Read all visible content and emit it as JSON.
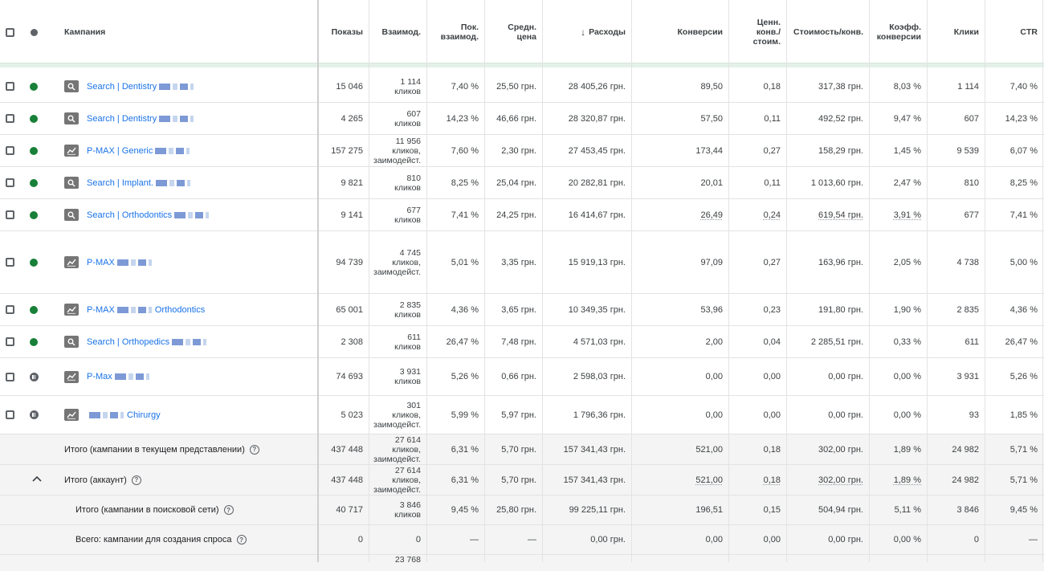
{
  "header": {
    "campaign": "Кампания",
    "impressions": "Показы",
    "interactions": "Взаимод.",
    "interaction_rate": "Пок. взаимод.",
    "avg_cost": "Средн. цена",
    "sort_arrow": "↓",
    "cost": "Расходы",
    "conversions": "Конверсии",
    "conv_value_cost": "Ценн. конв./ стоим.",
    "cost_per_conv": "Стоимость/конв.",
    "conv_rate": "Коэфф. конверсии",
    "clicks": "Клики",
    "ctr": "CTR"
  },
  "rows": [
    {
      "status": "enabled",
      "type": "search",
      "name": "Search | Dentistry",
      "impr": "15 046",
      "inter": "1 114",
      "inter_unit": "кликов",
      "inter_unit2": "",
      "rate": "7,40 %",
      "avg": "25,50 грн.",
      "cost": "28 405,26 грн.",
      "conv": "89,50",
      "cvc": "0,18",
      "cpc": "317,38 грн.",
      "cr": "8,03 %",
      "clicks": "1 114",
      "ctr": "7,40 %"
    },
    {
      "status": "enabled",
      "type": "search",
      "name": "Search | Dentistry",
      "impr": "4 265",
      "inter": "607",
      "inter_unit": "кликов",
      "inter_unit2": "",
      "rate": "14,23 %",
      "avg": "46,66 грн.",
      "cost": "28 320,87 грн.",
      "conv": "57,50",
      "cvc": "0,11",
      "cpc": "492,52 грн.",
      "cr": "9,47 %",
      "clicks": "607",
      "ctr": "14,23 %"
    },
    {
      "status": "enabled",
      "type": "pmax",
      "name": "P-MAX | Generic",
      "impr": "157 275",
      "inter": "11 956",
      "inter_unit": "кликов,",
      "inter_unit2": "заимодейст.",
      "rate": "7,60 %",
      "avg": "2,30 грн.",
      "cost": "27 453,45 грн.",
      "conv": "173,44",
      "cvc": "0,27",
      "cpc": "158,29 грн.",
      "cr": "1,45 %",
      "clicks": "9 539",
      "ctr": "6,07 %"
    },
    {
      "status": "enabled",
      "type": "search",
      "name": "Search | Implant.",
      "impr": "9 821",
      "inter": "810",
      "inter_unit": "кликов",
      "inter_unit2": "",
      "rate": "8,25 %",
      "avg": "25,04 грн.",
      "cost": "20 282,81 грн.",
      "conv": "20,01",
      "cvc": "0,11",
      "cpc": "1 013,60 грн.",
      "cr": "2,47 %",
      "clicks": "810",
      "ctr": "8,25 %"
    },
    {
      "status": "enabled",
      "type": "search",
      "name": "Search | Orthodontics",
      "impr": "9 141",
      "inter": "677",
      "inter_unit": "кликов",
      "inter_unit2": "",
      "rate": "7,41 %",
      "avg": "24,25 грн.",
      "cost": "16 414,67 грн.",
      "conv": "26,49",
      "cvc": "0,24",
      "cpc": "619,54 грн.",
      "cr": "3,91 %",
      "clicks": "677",
      "ctr": "7,41 %"
    },
    {
      "status": "enabled",
      "type": "pmax",
      "name": "P-MAX",
      "impr": "94 739",
      "inter": "4 745",
      "inter_unit": "кликов,",
      "inter_unit2": "заимодейст.",
      "rate": "5,01 %",
      "avg": "3,35 грн.",
      "cost": "15 919,13 грн.",
      "conv": "97,09",
      "cvc": "0,27",
      "cpc": "163,96 грн.",
      "cr": "2,05 %",
      "clicks": "4 738",
      "ctr": "5,00 %"
    },
    {
      "status": "enabled",
      "type": "pmax",
      "name": "P-MAX",
      "name2": "Orthodontics",
      "impr": "65 001",
      "inter": "2 835",
      "inter_unit": "кликов",
      "inter_unit2": "",
      "rate": "4,36 %",
      "avg": "3,65 грн.",
      "cost": "10 349,35 грн.",
      "conv": "53,96",
      "cvc": "0,23",
      "cpc": "191,80 грн.",
      "cr": "1,90 %",
      "clicks": "2 835",
      "ctr": "4,36 %"
    },
    {
      "status": "enabled",
      "type": "search",
      "name": "Search | Orthopedics",
      "impr": "2 308",
      "inter": "611",
      "inter_unit": "кликов",
      "inter_unit2": "",
      "rate": "26,47 %",
      "avg": "7,48 грн.",
      "cost": "4 571,03 грн.",
      "conv": "2,00",
      "cvc": "0,04",
      "cpc": "2 285,51 грн.",
      "cr": "0,33 %",
      "clicks": "611",
      "ctr": "26,47 %"
    },
    {
      "status": "paused",
      "type": "pmax",
      "name": "P-Max",
      "impr": "74 693",
      "inter": "3 931",
      "inter_unit": "кликов",
      "inter_unit2": "",
      "rate": "5,26 %",
      "avg": "0,66 грн.",
      "cost": "2 598,03 грн.",
      "conv": "0,00",
      "cvc": "0,00",
      "cpc": "0,00 грн.",
      "cr": "0,00 %",
      "clicks": "3 931",
      "ctr": "5,26 %"
    },
    {
      "status": "paused",
      "type": "pmax",
      "name": "",
      "name2": "Chirurgy",
      "impr": "5 023",
      "inter": "301",
      "inter_unit": "кликов,",
      "inter_unit2": "заимодейст.",
      "rate": "5,99 %",
      "avg": "5,97 грн.",
      "cost": "1 796,36 грн.",
      "conv": "0,00",
      "cvc": "0,00",
      "cpc": "0,00 грн.",
      "cr": "0,00 %",
      "clicks": "93",
      "ctr": "1,85 %"
    }
  ],
  "totals": [
    {
      "label": "Итого (кампании в текущем представлении)",
      "impr": "437 448",
      "inter": "27 614",
      "inter_unit": "кликов,",
      "inter_unit2": "заимодейст.",
      "rate": "6,31 %",
      "avg": "5,70 грн.",
      "cost": "157 341,43 грн.",
      "conv": "521,00",
      "cvc": "0,18",
      "cpc": "302,00 грн.",
      "cr": "1,89 %",
      "clicks": "24 982",
      "ctr": "5,71 %"
    },
    {
      "label": "Итого (аккаунт)",
      "impr": "437 448",
      "inter": "27 614",
      "inter_unit": "кликов,",
      "inter_unit2": "заимодейст.",
      "rate": "6,31 %",
      "avg": "5,70 грн.",
      "cost": "157 341,43 грн.",
      "conv": "521,00",
      "cvc": "0,18",
      "cpc": "302,00 грн.",
      "cr": "1,89 %",
      "clicks": "24 982",
      "ctr": "5,71 %"
    },
    {
      "label": "Итого (кампании в поисковой сети)",
      "impr": "40 717",
      "inter": "3 846",
      "inter_unit": "кликов",
      "inter_unit2": "",
      "rate": "9,45 %",
      "avg": "25,80 грн.",
      "cost": "99 225,11 грн.",
      "conv": "196,51",
      "cvc": "0,15",
      "cpc": "504,94 грн.",
      "cr": "5,11 %",
      "clicks": "3 846",
      "ctr": "9,45 %"
    },
    {
      "label": "Всего: кампании для создания спроса",
      "impr": "0",
      "inter": "0",
      "inter_unit": "",
      "inter_unit2": "",
      "rate": "—",
      "avg": "—",
      "cost": "0,00 грн.",
      "conv": "0,00",
      "cvc": "0,00",
      "cpc": "0,00 грн.",
      "cr": "0,00 %",
      "clicks": "0",
      "ctr": "—"
    }
  ],
  "partial_next_value": "23 768",
  "icons": {
    "help": "?",
    "collapse": "^"
  },
  "colors": {
    "link": "#1a73e8",
    "enabled": "#188038",
    "paused": "#5f6368"
  }
}
